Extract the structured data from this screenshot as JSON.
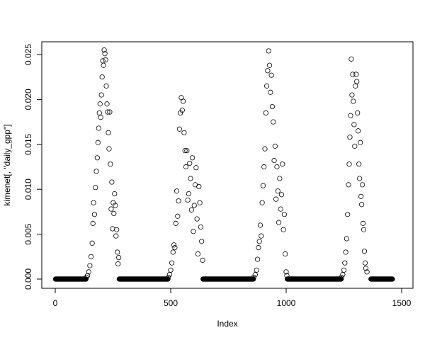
{
  "chart_data": {
    "type": "scatter",
    "title": "",
    "xlabel": "Index",
    "ylabel": "kimenet[, \"daily_gpp\"]",
    "xlim": [
      0,
      1500
    ],
    "ylim": [
      0,
      0.025
    ],
    "x_ticks": [
      "0",
      "500",
      "1000",
      "1500"
    ],
    "y_ticks": [
      "0.000",
      "0.005",
      "0.010",
      "0.015",
      "0.020",
      "0.025"
    ],
    "grid": false,
    "marker": "open-circle",
    "color": "#000000",
    "zero_index_ranges": [
      [
        1,
        133
      ],
      [
        277,
        488
      ],
      [
        640,
        858
      ],
      [
        1005,
        1238
      ],
      [
        1367,
        1460
      ]
    ],
    "points": [
      [
        135,
        0.0002
      ],
      [
        140,
        0.0004
      ],
      [
        145,
        0.0008
      ],
      [
        150,
        0.0015
      ],
      [
        155,
        0.0025
      ],
      [
        160,
        0.004
      ],
      [
        163,
        0.0062
      ],
      [
        166,
        0.0085
      ],
      [
        170,
        0.0072
      ],
      [
        174,
        0.0102
      ],
      [
        178,
        0.012
      ],
      [
        182,
        0.0135
      ],
      [
        185,
        0.0152
      ],
      [
        188,
        0.0168
      ],
      [
        191,
        0.0185
      ],
      [
        194,
        0.0195
      ],
      [
        197,
        0.018
      ],
      [
        200,
        0.0205
      ],
      [
        203,
        0.0225
      ],
      [
        206,
        0.0243
      ],
      [
        209,
        0.0238
      ],
      [
        212,
        0.0255
      ],
      [
        215,
        0.0251
      ],
      [
        218,
        0.0244
      ],
      [
        221,
        0.0215
      ],
      [
        224,
        0.0195
      ],
      [
        227,
        0.0186
      ],
      [
        230,
        0.0163
      ],
      [
        233,
        0.0145
      ],
      [
        236,
        0.0186
      ],
      [
        239,
        0.0128
      ],
      [
        242,
        0.0078
      ],
      [
        245,
        0.0108
      ],
      [
        248,
        0.0056
      ],
      [
        251,
        0.0085
      ],
      [
        254,
        0.0073
      ],
      [
        257,
        0.0095
      ],
      [
        260,
        0.0082
      ],
      [
        263,
        0.0048
      ],
      [
        266,
        0.0055
      ],
      [
        269,
        0.003
      ],
      [
        272,
        0.0017
      ],
      [
        275,
        0.0024
      ],
      [
        490,
        0.0002
      ],
      [
        495,
        0.0005
      ],
      [
        500,
        0.001
      ],
      [
        505,
        0.0018
      ],
      [
        510,
        0.003
      ],
      [
        514,
        0.0038
      ],
      [
        518,
        0.0035
      ],
      [
        522,
        0.0062
      ],
      [
        526,
        0.0098
      ],
      [
        530,
        0.007
      ],
      [
        534,
        0.0087
      ],
      [
        538,
        0.0167
      ],
      [
        542,
        0.0185
      ],
      [
        546,
        0.0202
      ],
      [
        550,
        0.0188
      ],
      [
        554,
        0.0198
      ],
      [
        558,
        0.0163
      ],
      [
        562,
        0.0143
      ],
      [
        566,
        0.0125
      ],
      [
        570,
        0.0143
      ],
      [
        574,
        0.0088
      ],
      [
        578,
        0.0095
      ],
      [
        582,
        0.0129
      ],
      [
        586,
        0.0112
      ],
      [
        590,
        0.0077
      ],
      [
        594,
        0.0135
      ],
      [
        598,
        0.0053
      ],
      [
        602,
        0.0082
      ],
      [
        606,
        0.0105
      ],
      [
        610,
        0.0124
      ],
      [
        614,
        0.0067
      ],
      [
        618,
        0.0028
      ],
      [
        622,
        0.0103
      ],
      [
        626,
        0.0085
      ],
      [
        630,
        0.0058
      ],
      [
        634,
        0.0042
      ],
      [
        638,
        0.0021
      ],
      [
        860,
        0.0002
      ],
      [
        866,
        0.0005
      ],
      [
        872,
        0.001
      ],
      [
        876,
        0.0022
      ],
      [
        880,
        0.0035
      ],
      [
        884,
        0.0042
      ],
      [
        888,
        0.006
      ],
      [
        892,
        0.0048
      ],
      [
        896,
        0.0085
      ],
      [
        900,
        0.0104
      ],
      [
        904,
        0.0125
      ],
      [
        908,
        0.0145
      ],
      [
        912,
        0.0185
      ],
      [
        916,
        0.0215
      ],
      [
        920,
        0.0232
      ],
      [
        924,
        0.0254
      ],
      [
        928,
        0.0238
      ],
      [
        932,
        0.0208
      ],
      [
        936,
        0.0227
      ],
      [
        940,
        0.0192
      ],
      [
        944,
        0.0175
      ],
      [
        948,
        0.0132
      ],
      [
        952,
        0.0148
      ],
      [
        956,
        0.0089
      ],
      [
        960,
        0.0125
      ],
      [
        964,
        0.0098
      ],
      [
        968,
        0.0063
      ],
      [
        972,
        0.0112
      ],
      [
        976,
        0.0078
      ],
      [
        980,
        0.0094
      ],
      [
        984,
        0.0128
      ],
      [
        988,
        0.0055
      ],
      [
        992,
        0.0072
      ],
      [
        996,
        0.0028
      ],
      [
        1000,
        0.0008
      ],
      [
        1003,
        0.0004
      ],
      [
        1240,
        0.0002
      ],
      [
        1245,
        0.0005
      ],
      [
        1250,
        0.001
      ],
      [
        1254,
        0.0018
      ],
      [
        1258,
        0.003
      ],
      [
        1262,
        0.0045
      ],
      [
        1266,
        0.0072
      ],
      [
        1270,
        0.0105
      ],
      [
        1273,
        0.0128
      ],
      [
        1276,
        0.0158
      ],
      [
        1279,
        0.0182
      ],
      [
        1282,
        0.0245
      ],
      [
        1285,
        0.0205
      ],
      [
        1288,
        0.0228
      ],
      [
        1291,
        0.0198
      ],
      [
        1294,
        0.0172
      ],
      [
        1297,
        0.0148
      ],
      [
        1300,
        0.0215
      ],
      [
        1303,
        0.0228
      ],
      [
        1306,
        0.022
      ],
      [
        1309,
        0.0185
      ],
      [
        1312,
        0.0165
      ],
      [
        1315,
        0.0128
      ],
      [
        1318,
        0.0112
      ],
      [
        1321,
        0.0152
      ],
      [
        1324,
        0.0092
      ],
      [
        1327,
        0.0083
      ],
      [
        1330,
        0.0105
      ],
      [
        1333,
        0.0062
      ],
      [
        1336,
        0.0055
      ],
      [
        1339,
        0.0031
      ],
      [
        1342,
        0.0018
      ],
      [
        1345,
        0.0012
      ],
      [
        1350,
        0.0008
      ]
    ]
  }
}
